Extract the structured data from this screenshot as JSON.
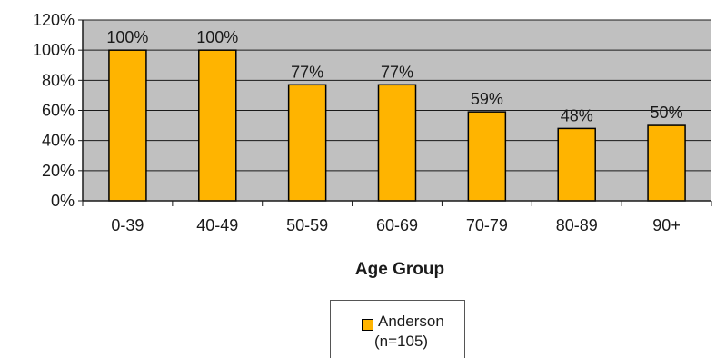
{
  "chart_data": {
    "type": "bar",
    "categories": [
      "0-39",
      "40-49",
      "50-59",
      "60-69",
      "70-79",
      "80-89",
      "90+"
    ],
    "series": [
      {
        "name": "Anderson",
        "values": [
          100,
          100,
          77,
          77,
          59,
          48,
          50
        ],
        "labels": [
          "100%",
          "100%",
          "77%",
          "77%",
          "59%",
          "48%",
          "50%"
        ]
      }
    ],
    "title": "",
    "xlabel": "Age Group",
    "ylabel": "",
    "ylim": [
      0,
      120
    ],
    "yticks": [
      "0%",
      "20%",
      "40%",
      "60%",
      "80%",
      "100%",
      "120%"
    ],
    "grid": true,
    "legend": "bottom",
    "colors": {
      "bar": "#FFB400",
      "plot_background": "#C0C0C0",
      "grid": "#1a1a1a"
    }
  },
  "legend": {
    "label": "Anderson",
    "sublabel": "(n=105)"
  }
}
